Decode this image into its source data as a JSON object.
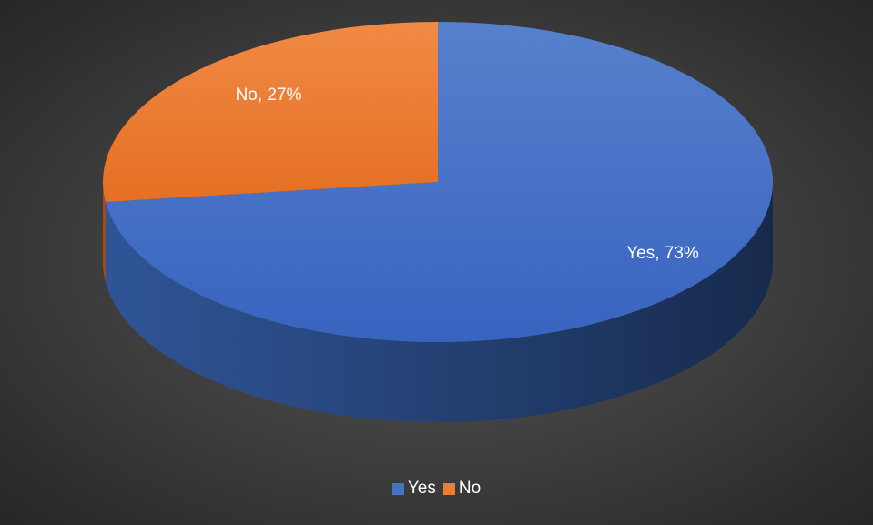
{
  "chart_data": {
    "type": "pie",
    "style": "3d",
    "title": "",
    "categories": [
      "Yes",
      "No"
    ],
    "values": [
      73,
      27
    ],
    "data_labels": [
      "Yes, 73%",
      "No, 27%"
    ],
    "colors": [
      "#4472c4",
      "#ed7d31"
    ],
    "legend": {
      "position": "bottom",
      "entries": [
        "Yes",
        "No"
      ]
    }
  }
}
